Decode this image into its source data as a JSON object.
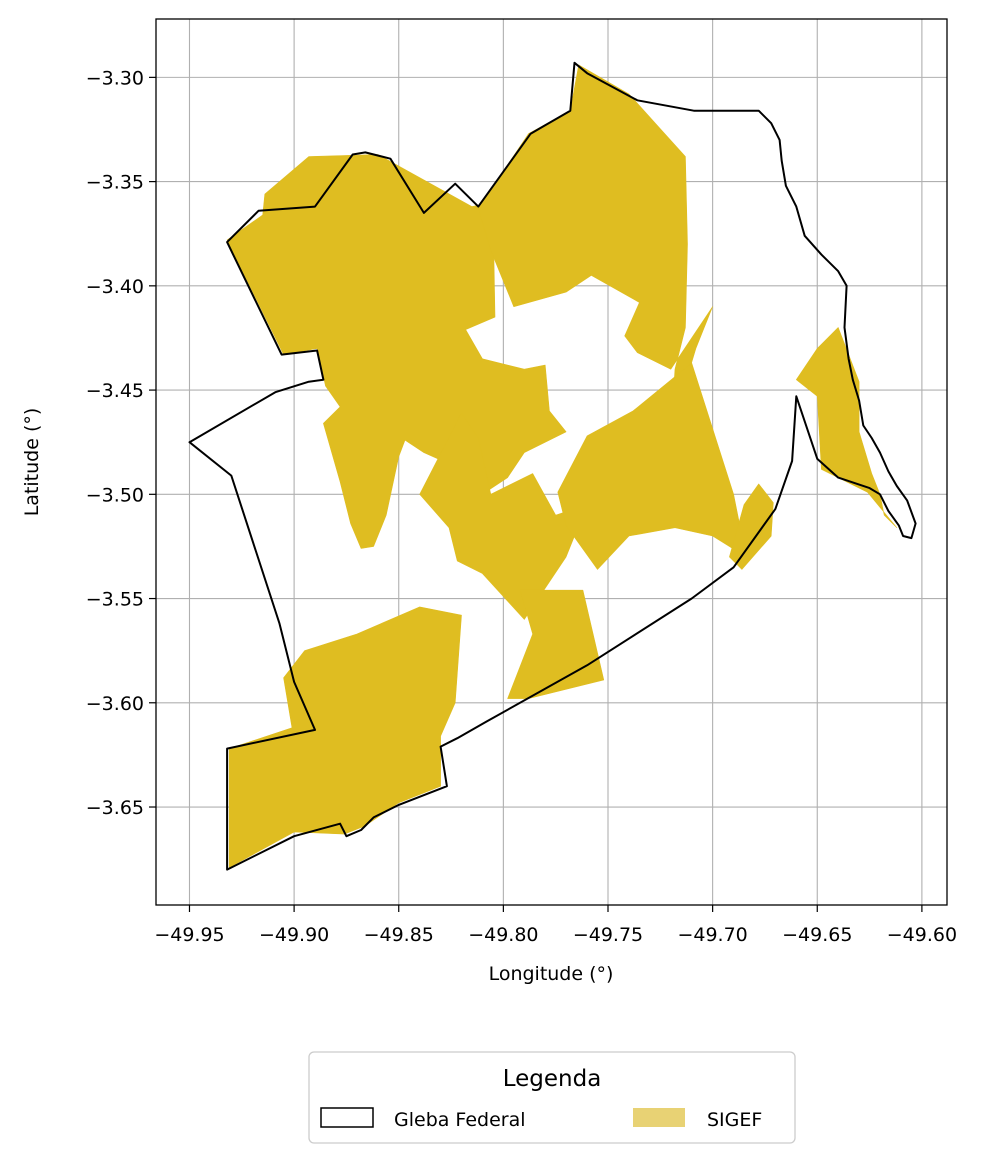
{
  "chart_data": {
    "type": "map",
    "xlabel": "Longitude (°)",
    "ylabel": "Latitude (°)",
    "xlim": [
      -49.966,
      -49.588
    ],
    "ylim": [
      -3.697,
      -3.272
    ],
    "xticks": [
      -49.95,
      -49.9,
      -49.85,
      -49.8,
      -49.75,
      -49.7,
      -49.65,
      -49.6
    ],
    "yticks": [
      -3.3,
      -3.35,
      -3.4,
      -3.45,
      -3.5,
      -3.55,
      -3.6,
      -3.65
    ],
    "xtick_labels": [
      "−49.95",
      "−49.90",
      "−49.85",
      "−49.80",
      "−49.75",
      "−49.70",
      "−49.65",
      "−49.60"
    ],
    "ytick_labels": [
      "−3.30",
      "−3.35",
      "−3.40",
      "−3.45",
      "−3.50",
      "−3.55",
      "−3.60",
      "−3.65"
    ],
    "grid": true,
    "legend": {
      "title": "Legenda",
      "placement": "bottom-center",
      "entries": [
        {
          "label": "Gleba Federal",
          "style": "outline",
          "edge_color": "#000000",
          "face_color": "#ffffff"
        },
        {
          "label": "SIGEF",
          "style": "filled",
          "face_color": "#e8d274"
        }
      ]
    },
    "colors": {
      "sigef_fill": "#dfbd21",
      "sigef_legend": "#e8d274",
      "boundary": "#000000",
      "grid": "#b0b0b0"
    },
    "boundary": [
      [
        -49.95,
        -3.475
      ],
      [
        -49.93,
        -3.491
      ],
      [
        -49.907,
        -3.562
      ],
      [
        -49.9,
        -3.59
      ],
      [
        -49.89,
        -3.613
      ],
      [
        -49.932,
        -3.622
      ],
      [
        -49.932,
        -3.68
      ],
      [
        -49.9,
        -3.664
      ],
      [
        -49.878,
        -3.658
      ],
      [
        -49.875,
        -3.664
      ],
      [
        -49.868,
        -3.661
      ],
      [
        -49.862,
        -3.655
      ],
      [
        -49.85,
        -3.649
      ],
      [
        -49.827,
        -3.64
      ],
      [
        -49.83,
        -3.621
      ],
      [
        -49.822,
        -3.617
      ],
      [
        -49.808,
        -3.609
      ],
      [
        -49.76,
        -3.582
      ],
      [
        -49.71,
        -3.55
      ],
      [
        -49.69,
        -3.535
      ],
      [
        -49.67,
        -3.507
      ],
      [
        -49.662,
        -3.484
      ],
      [
        -49.66,
        -3.453
      ],
      [
        -49.65,
        -3.483
      ],
      [
        -49.64,
        -3.492
      ],
      [
        -49.625,
        -3.497
      ],
      [
        -49.62,
        -3.5
      ],
      [
        -49.616,
        -3.508
      ],
      [
        -49.611,
        -3.515
      ],
      [
        -49.609,
        -3.52
      ],
      [
        -49.605,
        -3.521
      ],
      [
        -49.603,
        -3.514
      ],
      [
        -49.607,
        -3.503
      ],
      [
        -49.612,
        -3.496
      ],
      [
        -49.616,
        -3.489
      ],
      [
        -49.62,
        -3.48
      ],
      [
        -49.624,
        -3.473
      ],
      [
        -49.628,
        -3.467
      ],
      [
        -49.63,
        -3.455
      ],
      [
        -49.633,
        -3.445
      ],
      [
        -49.635,
        -3.435
      ],
      [
        -49.637,
        -3.42
      ],
      [
        -49.636,
        -3.4
      ],
      [
        -49.64,
        -3.393
      ],
      [
        -49.648,
        -3.385
      ],
      [
        -49.656,
        -3.376
      ],
      [
        -49.66,
        -3.362
      ],
      [
        -49.665,
        -3.352
      ],
      [
        -49.667,
        -3.34
      ],
      [
        -49.668,
        -3.33
      ],
      [
        -49.672,
        -3.322
      ],
      [
        -49.678,
        -3.316
      ],
      [
        -49.709,
        -3.316
      ],
      [
        -49.736,
        -3.311
      ],
      [
        -49.76,
        -3.298
      ],
      [
        -49.766,
        -3.293
      ],
      [
        -49.768,
        -3.316
      ],
      [
        -49.787,
        -3.327
      ],
      [
        -49.812,
        -3.362
      ],
      [
        -49.823,
        -3.351
      ],
      [
        -49.838,
        -3.365
      ],
      [
        -49.854,
        -3.339
      ],
      [
        -49.866,
        -3.336
      ],
      [
        -49.872,
        -3.337
      ],
      [
        -49.89,
        -3.362
      ],
      [
        -49.917,
        -3.364
      ],
      [
        -49.932,
        -3.379
      ],
      [
        -49.906,
        -3.433
      ],
      [
        -49.889,
        -3.431
      ],
      [
        -49.886,
        -3.445
      ],
      [
        -49.893,
        -3.446
      ],
      [
        -49.909,
        -3.451
      ],
      [
        -49.95,
        -3.475
      ]
    ],
    "sigef_polygons": [
      [
        [
          -49.932,
          -3.378
        ],
        [
          -49.915,
          -3.366
        ],
        [
          -49.914,
          -3.356
        ],
        [
          -49.893,
          -3.338
        ],
        [
          -49.86,
          -3.337
        ],
        [
          -49.815,
          -3.362
        ],
        [
          -49.805,
          -3.36
        ],
        [
          -49.804,
          -3.415
        ],
        [
          -49.818,
          -3.421
        ],
        [
          -49.81,
          -3.435
        ],
        [
          -49.79,
          -3.44
        ],
        [
          -49.78,
          -3.438
        ],
        [
          -49.778,
          -3.46
        ],
        [
          -49.77,
          -3.47
        ],
        [
          -49.79,
          -3.48
        ],
        [
          -49.798,
          -3.492
        ],
        [
          -49.81,
          -3.5
        ],
        [
          -49.82,
          -3.488
        ],
        [
          -49.838,
          -3.48
        ],
        [
          -49.847,
          -3.474
        ],
        [
          -49.85,
          -3.482
        ],
        [
          -49.856,
          -3.51
        ],
        [
          -49.862,
          -3.525
        ],
        [
          -49.868,
          -3.526
        ],
        [
          -49.873,
          -3.514
        ],
        [
          -49.878,
          -3.494
        ],
        [
          -49.886,
          -3.466
        ],
        [
          -49.878,
          -3.458
        ],
        [
          -49.885,
          -3.448
        ],
        [
          -49.889,
          -3.43
        ],
        [
          -49.905,
          -3.433
        ]
      ],
      [
        [
          -49.812,
          -3.363
        ],
        [
          -49.788,
          -3.327
        ],
        [
          -49.768,
          -3.316
        ],
        [
          -49.764,
          -3.294
        ],
        [
          -49.74,
          -3.308
        ],
        [
          -49.713,
          -3.338
        ],
        [
          -49.712,
          -3.38
        ],
        [
          -49.713,
          -3.42
        ],
        [
          -49.718,
          -3.44
        ],
        [
          -49.72,
          -3.47
        ],
        [
          -49.708,
          -3.43
        ],
        [
          -49.7,
          -3.41
        ],
        [
          -49.72,
          -3.44
        ],
        [
          -49.736,
          -3.432
        ],
        [
          -49.742,
          -3.424
        ],
        [
          -49.735,
          -3.408
        ],
        [
          -49.758,
          -3.395
        ],
        [
          -49.77,
          -3.403
        ],
        [
          -49.795,
          -3.41
        ],
        [
          -49.806,
          -3.383
        ]
      ],
      [
        [
          -49.84,
          -3.5
        ],
        [
          -49.82,
          -3.461
        ],
        [
          -49.812,
          -3.473
        ],
        [
          -49.806,
          -3.5
        ],
        [
          -49.786,
          -3.49
        ],
        [
          -49.775,
          -3.51
        ],
        [
          -49.76,
          -3.505
        ],
        [
          -49.77,
          -3.53
        ],
        [
          -49.79,
          -3.56
        ],
        [
          -49.81,
          -3.538
        ],
        [
          -49.822,
          -3.532
        ],
        [
          -49.826,
          -3.516
        ]
      ],
      [
        [
          -49.774,
          -3.499
        ],
        [
          -49.76,
          -3.472
        ],
        [
          -49.738,
          -3.46
        ],
        [
          -49.71,
          -3.437
        ],
        [
          -49.69,
          -3.5
        ],
        [
          -49.684,
          -3.53
        ],
        [
          -49.7,
          -3.52
        ],
        [
          -49.718,
          -3.516
        ],
        [
          -49.74,
          -3.52
        ],
        [
          -49.755,
          -3.536
        ],
        [
          -49.77,
          -3.515
        ]
      ],
      [
        [
          -49.901,
          -3.612
        ],
        [
          -49.905,
          -3.588
        ],
        [
          -49.895,
          -3.575
        ],
        [
          -49.87,
          -3.567
        ],
        [
          -49.84,
          -3.554
        ],
        [
          -49.82,
          -3.558
        ],
        [
          -49.823,
          -3.6
        ],
        [
          -49.83,
          -3.616
        ],
        [
          -49.83,
          -3.64
        ],
        [
          -49.85,
          -3.648
        ],
        [
          -49.866,
          -3.659
        ],
        [
          -49.876,
          -3.663
        ],
        [
          -49.9,
          -3.662
        ],
        [
          -49.931,
          -3.679
        ],
        [
          -49.931,
          -3.622
        ]
      ],
      [
        [
          -49.798,
          -3.598
        ],
        [
          -49.786,
          -3.567
        ],
        [
          -49.792,
          -3.546
        ],
        [
          -49.762,
          -3.546
        ],
        [
          -49.752,
          -3.589
        ],
        [
          -49.788,
          -3.598
        ]
      ],
      [
        [
          -49.648,
          -3.488
        ],
        [
          -49.65,
          -3.453
        ],
        [
          -49.66,
          -3.445
        ],
        [
          -49.65,
          -3.43
        ],
        [
          -49.64,
          -3.42
        ],
        [
          -49.63,
          -3.446
        ],
        [
          -49.63,
          -3.47
        ],
        [
          -49.624,
          -3.49
        ],
        [
          -49.62,
          -3.5
        ],
        [
          -49.618,
          -3.51
        ],
        [
          -49.612,
          -3.516
        ],
        [
          -49.626,
          -3.499
        ]
      ],
      [
        [
          -49.671,
          -3.504
        ],
        [
          -49.678,
          -3.495
        ],
        [
          -49.685,
          -3.505
        ],
        [
          -49.692,
          -3.53
        ],
        [
          -49.686,
          -3.536
        ],
        [
          -49.672,
          -3.52
        ]
      ]
    ]
  }
}
